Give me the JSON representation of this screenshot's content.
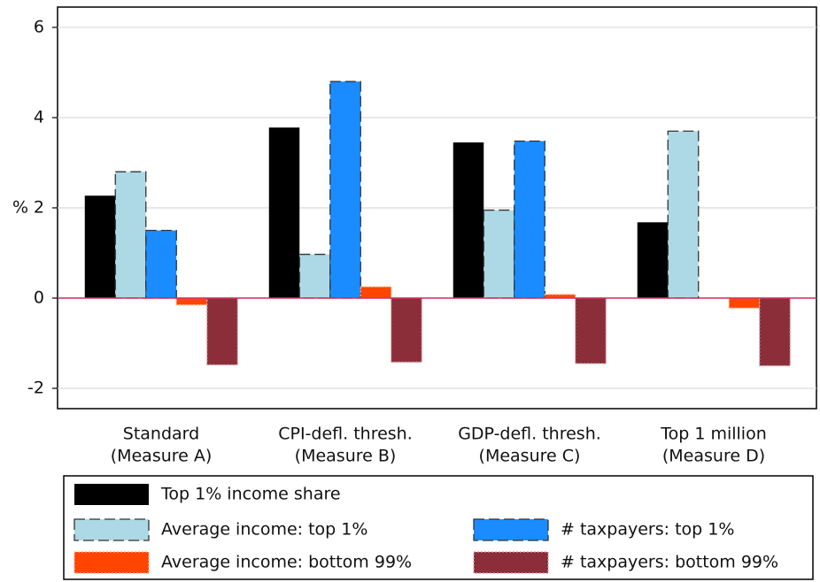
{
  "chart_data": {
    "type": "bar",
    "y_label": "%",
    "categories": [
      [
        "Standard",
        "(Measure A)"
      ],
      [
        "CPI-defl. thresh.",
        "(Measure B)"
      ],
      [
        "GDP-defl. thresh.",
        "(Measure C)"
      ],
      [
        "Top 1 million",
        "(Measure D)"
      ]
    ],
    "series": [
      {
        "name": "Top 1% income share",
        "color": "#000000",
        "values": [
          2.27,
          3.78,
          3.45,
          1.68
        ]
      },
      {
        "name": "Average income: top 1%",
        "color": "#add8e6",
        "values": [
          2.8,
          0.97,
          1.95,
          3.7
        ]
      },
      {
        "name": "# taxpayers: top 1%",
        "color": "#1a8cff",
        "values": [
          1.5,
          4.8,
          3.48,
          0
        ]
      },
      {
        "name": "Average income: bottom 99%",
        "color": "#ff4500",
        "values": [
          -0.15,
          0.25,
          0.08,
          -0.22
        ]
      },
      {
        "name": "# taxpayers: bottom 99%",
        "color": "#8b2e3a",
        "values": [
          -1.48,
          -1.42,
          -1.45,
          -1.5
        ]
      }
    ],
    "ylim": [
      -2.45,
      6.45
    ],
    "yticks": [
      -2,
      0,
      2,
      4,
      6
    ],
    "grid": true
  }
}
